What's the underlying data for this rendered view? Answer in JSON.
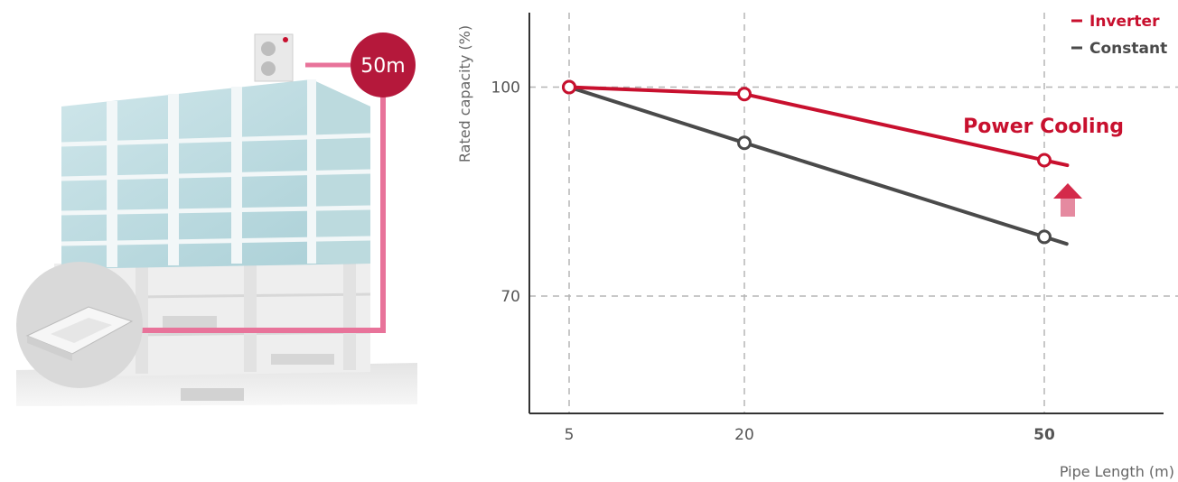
{
  "illustration": {
    "distance_badge": "50m",
    "colors": {
      "pipe": "#e8739a",
      "badge": "#b5183b"
    }
  },
  "chart_data": {
    "type": "line",
    "x": [
      5,
      20,
      50
    ],
    "xtick_labels": [
      "5",
      "20",
      "50"
    ],
    "highlight_tick": "50",
    "ylabel": "Rated capacity (%)",
    "xlabel": "Pipe Length (m)",
    "ytick_labels": [
      "100",
      "70"
    ],
    "yticks": [
      100,
      70
    ],
    "ylim": [
      60,
      110
    ],
    "grid": true,
    "legend_position": "top-right",
    "series": [
      {
        "name": "Inverter",
        "values": [
          100,
          99,
          89.5
        ],
        "color": "#c8102e"
      },
      {
        "name": "Constant",
        "values": [
          100,
          92,
          78.5
        ],
        "color": "#4a4a4a"
      }
    ],
    "annotation": {
      "text": "Power Cooling",
      "color": "#c8102e",
      "icon": "up-arrow-icon"
    }
  }
}
